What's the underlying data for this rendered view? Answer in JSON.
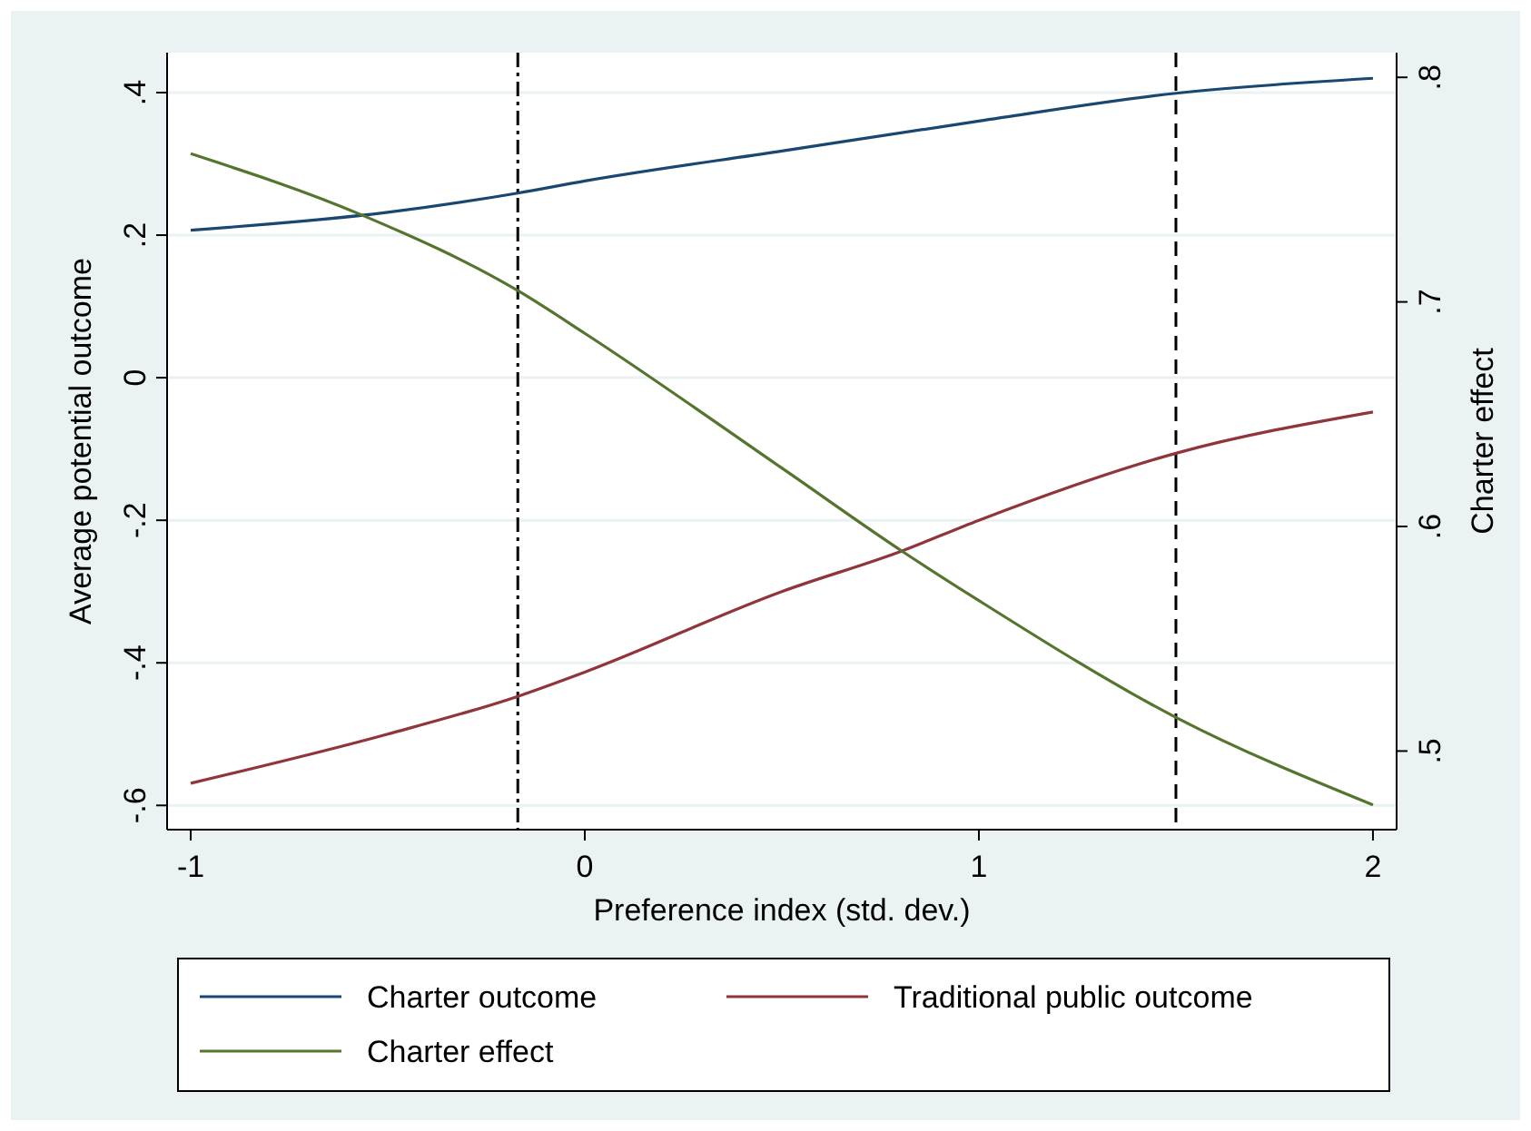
{
  "chart_data": {
    "type": "line",
    "xlabel": "Preference index (std. dev.)",
    "ylabel": "Average potential outcome",
    "y2label": "Charter effect",
    "xlim": [
      -1.06,
      2.06
    ],
    "xticks": [
      -1,
      0,
      1,
      2
    ],
    "ylim": [
      -0.634,
      0.456
    ],
    "yticks": [
      {
        "value": -0.6,
        "label": "-.6"
      },
      {
        "value": -0.4,
        "label": "-.4"
      },
      {
        "value": -0.2,
        "label": "-.2"
      },
      0,
      {
        "value": 0.2,
        "label": ".2"
      },
      {
        "value": 0.4,
        "label": ".4"
      }
    ],
    "y2lim": [
      0.465,
      0.811
    ],
    "y2ticks": [
      {
        "value": 0.5,
        "label": ".5"
      },
      {
        "value": 0.6,
        "label": ".6"
      },
      {
        "value": 0.7,
        "label": ".7"
      },
      {
        "value": 0.8,
        "label": ".8"
      }
    ],
    "grid": "y",
    "legend": "bottom",
    "marker": "none",
    "line_style": "solid",
    "ref_lines": [
      {
        "axis": "x",
        "value": -0.17,
        "line_style": "dashdot",
        "color": "#000000"
      },
      {
        "axis": "x",
        "value": 1.5,
        "line_style": "dashed",
        "color": "#000000"
      }
    ],
    "series": [
      {
        "name": "Charter outcome",
        "color": "#1a476f",
        "x": [
          -1,
          -0.5,
          -0.17,
          0,
          0.5,
          1,
          1.5,
          2
        ],
        "values": [
          0.207,
          0.232,
          0.259,
          0.276,
          0.318,
          0.36,
          0.399,
          0.42
        ]
      },
      {
        "name": "Traditional public outcome",
        "color": "#90353b",
        "x": [
          -1,
          -0.5,
          -0.17,
          0,
          0.5,
          0.805,
          1,
          1.5,
          2
        ],
        "values": [
          -0.569,
          -0.5,
          -0.447,
          -0.413,
          -0.3,
          -0.243,
          -0.2,
          -0.106,
          -0.048
        ]
      },
      {
        "name": "Charter effect",
        "color": "#55752f",
        "axis": "y2",
        "x": [
          -1,
          -0.57,
          -0.17,
          0,
          0.5,
          0.805,
          1,
          1.5,
          2
        ],
        "values": [
          0.766,
          0.739,
          0.705,
          0.686,
          0.626,
          0.589,
          0.567,
          0.515,
          0.476
        ]
      }
    ]
  }
}
